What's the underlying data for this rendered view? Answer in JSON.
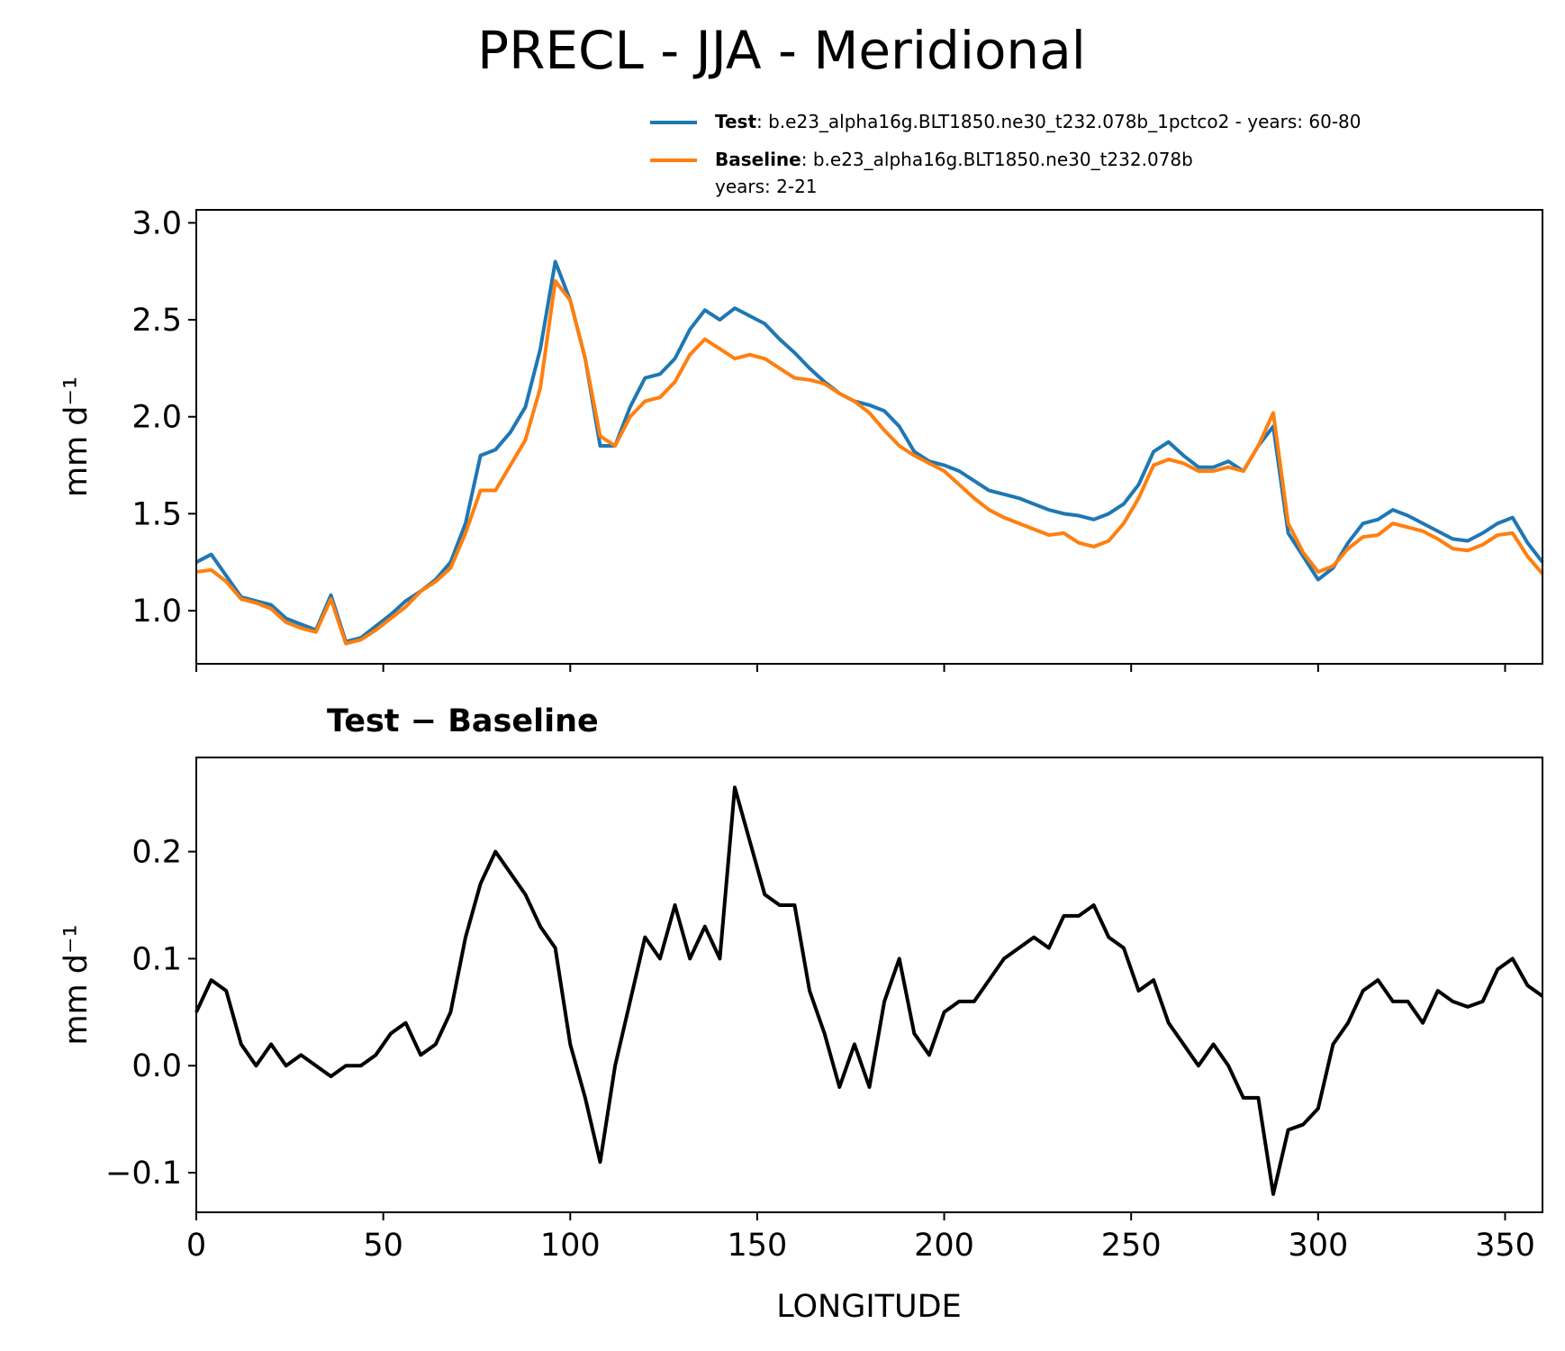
{
  "chart_data": [
    {
      "type": "line",
      "title": "PRECL - JJA - Meridional",
      "ylabel": "mm d⁻¹",
      "x": [
        0,
        4,
        8,
        12,
        16,
        20,
        24,
        28,
        32,
        36,
        40,
        44,
        48,
        52,
        56,
        60,
        64,
        68,
        72,
        76,
        80,
        84,
        88,
        92,
        96,
        100,
        104,
        108,
        112,
        116,
        120,
        124,
        128,
        132,
        136,
        140,
        144,
        148,
        152,
        156,
        160,
        164,
        168,
        172,
        176,
        180,
        184,
        188,
        192,
        196,
        200,
        204,
        208,
        212,
        216,
        220,
        224,
        228,
        232,
        236,
        240,
        244,
        248,
        252,
        256,
        260,
        264,
        268,
        272,
        276,
        280,
        284,
        288,
        292,
        296,
        300,
        304,
        308,
        312,
        316,
        320,
        324,
        328,
        332,
        336,
        340,
        344,
        348,
        352,
        356,
        360
      ],
      "series": [
        {
          "name": "Test",
          "legend_text": [
            ": b.e23_alpha16g.BLT1850.ne30_t232.078b_1pctco2 - years: 60-80"
          ],
          "color": "#1f77b4",
          "values": [
            1.25,
            1.29,
            1.18,
            1.07,
            1.05,
            1.03,
            0.96,
            0.93,
            0.9,
            1.08,
            0.84,
            0.86,
            0.92,
            0.98,
            1.05,
            1.1,
            1.16,
            1.25,
            1.45,
            1.8,
            1.83,
            1.92,
            2.05,
            2.35,
            2.8,
            2.6,
            2.3,
            1.85,
            1.85,
            2.05,
            2.2,
            2.22,
            2.3,
            2.45,
            2.55,
            2.5,
            2.56,
            2.52,
            2.48,
            2.4,
            2.33,
            2.25,
            2.18,
            2.12,
            2.08,
            2.06,
            2.03,
            1.95,
            1.82,
            1.77,
            1.75,
            1.72,
            1.67,
            1.62,
            1.6,
            1.58,
            1.55,
            1.52,
            1.5,
            1.49,
            1.47,
            1.5,
            1.55,
            1.65,
            1.82,
            1.87,
            1.8,
            1.74,
            1.74,
            1.77,
            1.72,
            1.85,
            1.95,
            1.4,
            1.28,
            1.16,
            1.22,
            1.35,
            1.45,
            1.47,
            1.52,
            1.49,
            1.45,
            1.41,
            1.37,
            1.36,
            1.4,
            1.45,
            1.48,
            1.35,
            1.25
          ]
        },
        {
          "name": "Baseline",
          "legend_text": [
            ": b.e23_alpha16g.BLT1850.ne30_t232.078b",
            "years: 2-21"
          ],
          "color": "#ff7f0e",
          "values": [
            1.2,
            1.21,
            1.15,
            1.06,
            1.04,
            1.01,
            0.94,
            0.91,
            0.89,
            1.06,
            0.83,
            0.85,
            0.9,
            0.96,
            1.02,
            1.1,
            1.15,
            1.22,
            1.4,
            1.62,
            1.62,
            1.75,
            1.88,
            2.15,
            2.7,
            2.6,
            2.3,
            1.9,
            1.85,
            2.0,
            2.08,
            2.1,
            2.18,
            2.32,
            2.4,
            2.35,
            2.3,
            2.32,
            2.3,
            2.25,
            2.2,
            2.19,
            2.17,
            2.12,
            2.08,
            2.02,
            1.93,
            1.85,
            1.8,
            1.76,
            1.72,
            1.65,
            1.58,
            1.52,
            1.48,
            1.45,
            1.42,
            1.39,
            1.4,
            1.35,
            1.33,
            1.36,
            1.45,
            1.58,
            1.75,
            1.78,
            1.76,
            1.72,
            1.72,
            1.74,
            1.72,
            1.85,
            2.02,
            1.45,
            1.3,
            1.2,
            1.23,
            1.32,
            1.38,
            1.39,
            1.45,
            1.43,
            1.41,
            1.37,
            1.32,
            1.31,
            1.34,
            1.39,
            1.4,
            1.28,
            1.19
          ]
        }
      ],
      "xlim": [
        0,
        360
      ],
      "xticks": [
        0,
        50,
        100,
        150,
        200,
        250,
        300,
        350
      ],
      "ylim": [
        0.726,
        3.067
      ],
      "yticks": [
        {
          "value": 1.0,
          "label": "1.0"
        },
        1.5,
        {
          "value": 2.0,
          "label": "2.0"
        },
        2.5,
        {
          "value": 3.0,
          "label": "3.0"
        }
      ]
    },
    {
      "type": "line",
      "title": "Test − Baseline",
      "xlabel": "LONGITUDE",
      "ylabel": "mm d⁻¹",
      "x": [
        0,
        4,
        8,
        12,
        16,
        20,
        24,
        28,
        32,
        36,
        40,
        44,
        48,
        52,
        56,
        60,
        64,
        68,
        72,
        76,
        80,
        84,
        88,
        92,
        96,
        100,
        104,
        108,
        112,
        116,
        120,
        124,
        128,
        132,
        136,
        140,
        144,
        148,
        152,
        156,
        160,
        164,
        168,
        172,
        176,
        180,
        184,
        188,
        192,
        196,
        200,
        204,
        208,
        212,
        216,
        220,
        224,
        228,
        232,
        236,
        240,
        244,
        248,
        252,
        256,
        260,
        264,
        268,
        272,
        276,
        280,
        284,
        288,
        292,
        296,
        300,
        304,
        308,
        312,
        316,
        320,
        324,
        328,
        332,
        336,
        340,
        344,
        348,
        352,
        356,
        360
      ],
      "series": [
        {
          "color": "#000000",
          "values": [
            0.05,
            0.08,
            0.07,
            0.02,
            0.0,
            0.02,
            0.0,
            0.01,
            0.0,
            -0.01,
            0.0,
            0.0,
            0.01,
            0.03,
            0.04,
            0.01,
            0.02,
            0.05,
            0.12,
            0.17,
            0.2,
            0.18,
            0.16,
            0.13,
            0.11,
            0.02,
            -0.03,
            -0.09,
            0.0,
            0.06,
            0.12,
            0.1,
            0.15,
            0.1,
            0.13,
            0.1,
            0.26,
            0.21,
            0.16,
            0.15,
            0.15,
            0.07,
            0.03,
            -0.02,
            0.02,
            -0.02,
            0.06,
            0.1,
            0.03,
            0.01,
            0.05,
            0.06,
            0.06,
            0.08,
            0.1,
            0.11,
            0.12,
            0.11,
            0.14,
            0.14,
            0.15,
            0.12,
            0.11,
            0.07,
            0.08,
            0.04,
            0.02,
            0.0,
            0.02,
            0.0,
            -0.03,
            -0.03,
            -0.12,
            -0.06,
            -0.055,
            -0.04,
            0.02,
            0.04,
            0.07,
            0.08,
            0.06,
            0.06,
            0.04,
            0.07,
            0.06,
            0.055,
            0.06,
            0.09,
            0.1,
            0.075,
            0.065
          ]
        }
      ],
      "xlim": [
        0,
        360
      ],
      "xticks": [
        0,
        50,
        100,
        150,
        200,
        250,
        300,
        350
      ],
      "ylim": [
        -0.137,
        0.288
      ],
      "yticks": [
        {
          "value": -0.1,
          "label": "−0.1"
        },
        {
          "value": 0.0,
          "label": "0.0"
        },
        0.1,
        0.2
      ]
    }
  ]
}
